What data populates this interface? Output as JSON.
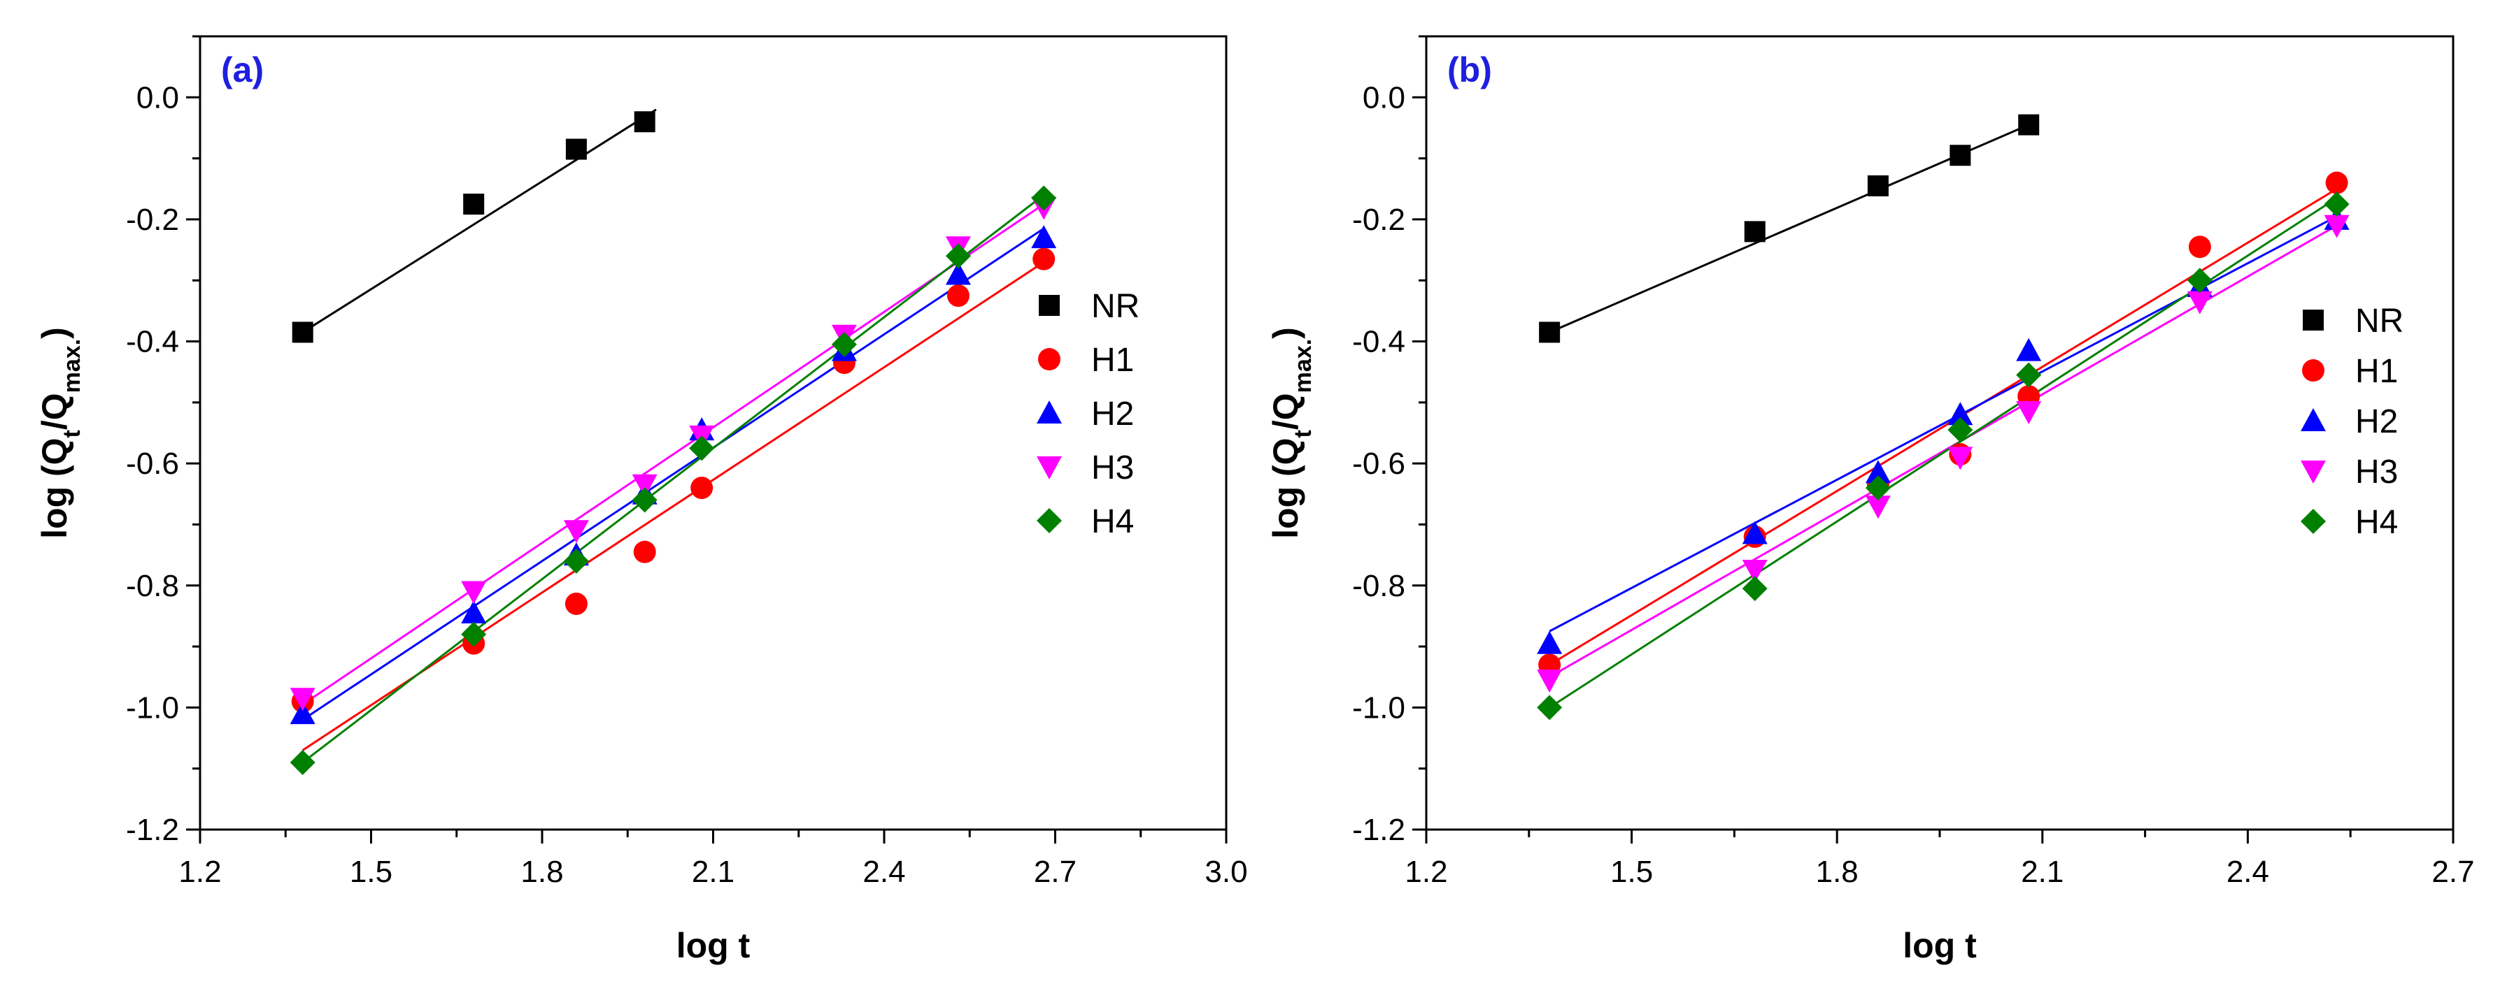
{
  "colors": {
    "NR": "#000000",
    "H1": "#ff0000",
    "H2": "#0000ff",
    "H3": "#ff00ff",
    "H4": "#008000",
    "panel_tag": "#1f1fe0"
  },
  "markers": {
    "NR": "square",
    "H1": "circle",
    "H2": "triangle-up",
    "H3": "triangle-down",
    "H4": "diamond"
  },
  "chart_data": [
    {
      "type": "scatter",
      "panel_label": "(a)",
      "xlabel": "log t",
      "ylabel": "log (Qt/Qmax.)",
      "xlim": [
        1.2,
        3.0
      ],
      "ylim": [
        -1.2,
        0.1
      ],
      "x_ticks": [
        1.2,
        1.5,
        1.8,
        2.1,
        2.4,
        2.7,
        3.0
      ],
      "x_tick_labels": [
        "1.2",
        "1.5",
        "1.8",
        "2.1",
        "2.4",
        "2.7",
        "3.0"
      ],
      "y_ticks": [
        -1.2,
        -1.0,
        -0.8,
        -0.6,
        -0.4,
        -0.2,
        0.0
      ],
      "y_tick_labels": [
        "-1.2",
        "-1.0",
        "-0.8",
        "-0.6",
        "-0.4",
        "-0.2",
        "0.0"
      ],
      "legend": [
        "NR",
        "H1",
        "H2",
        "H3",
        "H4"
      ],
      "legend_position": "right",
      "series": [
        {
          "name": "NR",
          "x": [
            1.38,
            1.68,
            1.86,
            1.98
          ],
          "y": [
            -0.385,
            -0.175,
            -0.085,
            -0.04
          ],
          "fit": [
            [
              1.38,
              -0.385
            ],
            [
              2.0,
              -0.02
            ]
          ]
        },
        {
          "name": "H1",
          "x": [
            1.38,
            1.68,
            1.86,
            1.98,
            2.08,
            2.33,
            2.53,
            2.68
          ],
          "y": [
            -0.99,
            -0.895,
            -0.83,
            -0.745,
            -0.64,
            -0.435,
            -0.325,
            -0.265
          ],
          "fit": [
            [
              1.38,
              -1.07
            ],
            [
              2.68,
              -0.27
            ]
          ]
        },
        {
          "name": "H2",
          "x": [
            1.38,
            1.68,
            1.86,
            1.98,
            2.08,
            2.33,
            2.53,
            2.68
          ],
          "y": [
            -1.01,
            -0.845,
            -0.75,
            -0.65,
            -0.545,
            -0.415,
            -0.29,
            -0.23
          ],
          "fit": [
            [
              1.38,
              -1.02
            ],
            [
              2.68,
              -0.215
            ]
          ]
        },
        {
          "name": "H3",
          "x": [
            1.38,
            1.68,
            1.86,
            1.98,
            2.08,
            2.33,
            2.53,
            2.68
          ],
          "y": [
            -0.985,
            -0.81,
            -0.71,
            -0.635,
            -0.555,
            -0.39,
            -0.245,
            -0.18
          ],
          "fit": [
            [
              1.38,
              -0.995
            ],
            [
              2.68,
              -0.175
            ]
          ]
        },
        {
          "name": "H4",
          "x": [
            1.38,
            1.68,
            1.86,
            1.98,
            2.08,
            2.33,
            2.53,
            2.68
          ],
          "y": [
            -1.09,
            -0.88,
            -0.76,
            -0.66,
            -0.575,
            -0.405,
            -0.26,
            -0.165
          ],
          "fit": [
            [
              1.38,
              -1.09
            ],
            [
              2.68,
              -0.16
            ]
          ]
        }
      ]
    },
    {
      "type": "scatter",
      "panel_label": "(b)",
      "xlabel": "log t",
      "ylabel": "log (Qt/Qmax.)",
      "xlim": [
        1.2,
        2.7
      ],
      "ylim": [
        -1.2,
        0.1
      ],
      "x_ticks": [
        1.2,
        1.5,
        1.8,
        2.1,
        2.4,
        2.7
      ],
      "x_tick_labels": [
        "1.2",
        "1.5",
        "1.8",
        "2.1",
        "2.4",
        "2.7"
      ],
      "y_ticks": [
        -1.2,
        -1.0,
        -0.8,
        -0.6,
        -0.4,
        -0.2,
        0.0
      ],
      "y_tick_labels": [
        "-1.2",
        "-1.0",
        "-0.8",
        "-0.6",
        "-0.4",
        "-0.2",
        "0.0"
      ],
      "legend": [
        "NR",
        "H1",
        "H2",
        "H3",
        "H4"
      ],
      "legend_position": "right",
      "series": [
        {
          "name": "NR",
          "x": [
            1.38,
            1.68,
            1.86,
            1.98,
            2.08
          ],
          "y": [
            -0.385,
            -0.22,
            -0.145,
            -0.095,
            -0.045
          ],
          "fit": [
            [
              1.38,
              -0.385
            ],
            [
              2.08,
              -0.045
            ]
          ]
        },
        {
          "name": "H1",
          "x": [
            1.38,
            1.68,
            1.86,
            1.98,
            2.08,
            2.33,
            2.53
          ],
          "y": [
            -0.93,
            -0.72,
            -0.635,
            -0.585,
            -0.49,
            -0.245,
            -0.14
          ],
          "fit": [
            [
              1.38,
              -0.93
            ],
            [
              2.53,
              -0.15
            ]
          ]
        },
        {
          "name": "H2",
          "x": [
            1.38,
            1.68,
            1.86,
            1.98,
            2.08,
            2.33,
            2.53
          ],
          "y": [
            -0.895,
            -0.715,
            -0.615,
            -0.52,
            -0.415,
            -0.31,
            -0.2
          ],
          "fit": [
            [
              1.38,
              -0.875
            ],
            [
              2.53,
              -0.195
            ]
          ]
        },
        {
          "name": "H3",
          "x": [
            1.38,
            1.68,
            1.86,
            1.98,
            2.08,
            2.33,
            2.53
          ],
          "y": [
            -0.955,
            -0.775,
            -0.67,
            -0.59,
            -0.515,
            -0.335,
            -0.21
          ],
          "fit": [
            [
              1.38,
              -0.95
            ],
            [
              2.53,
              -0.21
            ]
          ]
        },
        {
          "name": "H4",
          "x": [
            1.38,
            1.68,
            1.86,
            1.98,
            2.08,
            2.33,
            2.53
          ],
          "y": [
            -1.0,
            -0.805,
            -0.64,
            -0.545,
            -0.455,
            -0.3,
            -0.175
          ],
          "fit": [
            [
              1.38,
              -1.0
            ],
            [
              2.53,
              -0.165
            ]
          ]
        }
      ]
    }
  ]
}
